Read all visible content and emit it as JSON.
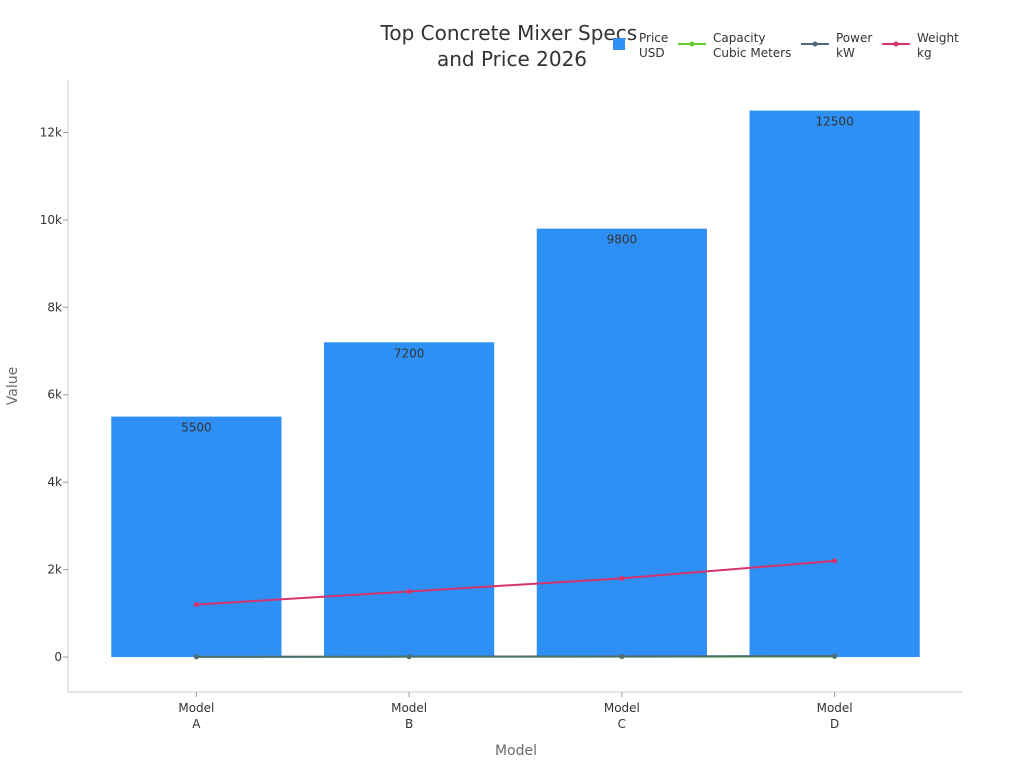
{
  "chart_data": {
    "type": "bar",
    "title": [
      "Top Concrete Mixer Specs",
      "and Price 2026"
    ],
    "xlabel": "Model",
    "ylabel": "Value",
    "categories": [
      [
        "Model",
        "A"
      ],
      [
        "Model",
        "B"
      ],
      [
        "Model",
        "C"
      ],
      [
        "Model",
        "D"
      ]
    ],
    "ylim": [
      -800,
      13200
    ],
    "yticks": [
      0,
      2000,
      4000,
      6000,
      8000,
      10000,
      12000
    ],
    "ytick_labels": [
      "0",
      "2k",
      "4k",
      "6k",
      "8k",
      "10k",
      "12k"
    ],
    "grid": false,
    "legend_position": "top-right",
    "series": [
      {
        "key": "price",
        "name": [
          "Price",
          "USD"
        ],
        "kind": "bar",
        "color": "#2e90f5",
        "values": [
          5500,
          7200,
          9800,
          12500
        ],
        "labels": [
          "5500",
          "7200",
          "9800",
          "12500"
        ]
      },
      {
        "key": "capacity",
        "name": [
          "Capacity",
          "Cubic Meters"
        ],
        "kind": "line",
        "color": "#66cc33",
        "values": [
          3.5,
          5,
          7,
          9
        ]
      },
      {
        "key": "power",
        "name": [
          "Power",
          "kW"
        ],
        "kind": "line",
        "color": "#4f6b7a",
        "values": [
          5.5,
          11,
          15,
          22
        ]
      },
      {
        "key": "weight",
        "name": [
          "Weight",
          "kg"
        ],
        "kind": "line",
        "color": "#d6336c",
        "values": [
          1200,
          1500,
          1800,
          2200
        ]
      }
    ]
  }
}
